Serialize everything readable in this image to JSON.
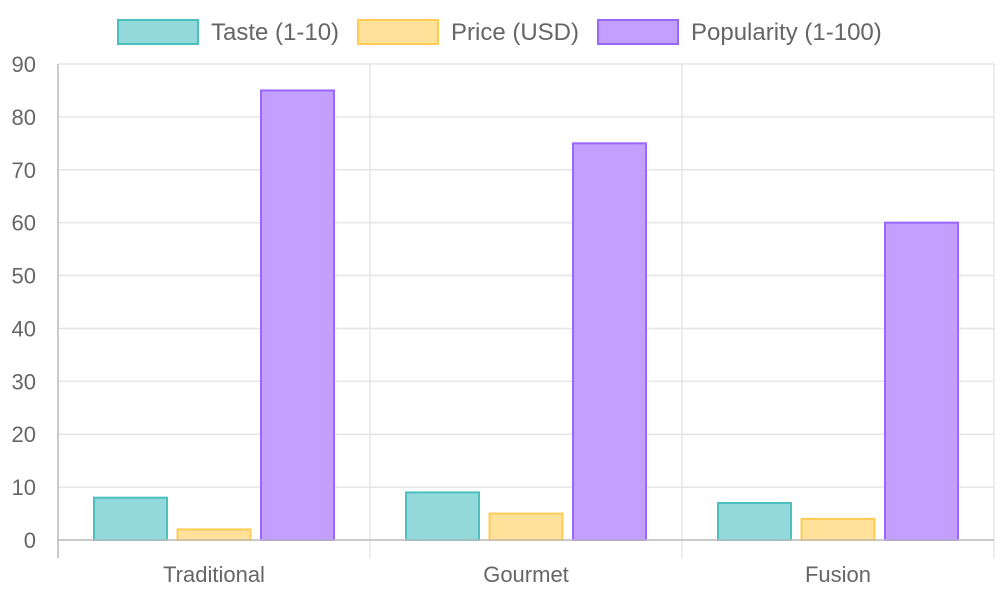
{
  "chart_data": {
    "type": "bar",
    "categories": [
      "Traditional",
      "Gourmet",
      "Fusion"
    ],
    "series": [
      {
        "name": "Taste (1-10)",
        "values": [
          8,
          9,
          7
        ],
        "fill": "#93d9d9",
        "stroke": "#4bc0c0"
      },
      {
        "name": "Price (USD)",
        "values": [
          2,
          5,
          4
        ],
        "fill": "#ffe19a",
        "stroke": "#ffcd56"
      },
      {
        "name": "Popularity (1-100)",
        "values": [
          85,
          75,
          60
        ],
        "fill": "#c39fff",
        "stroke": "#9966ff"
      }
    ],
    "ylim": [
      0,
      90
    ],
    "yticks": [
      "0",
      "10",
      "20",
      "30",
      "40",
      "50",
      "60",
      "70",
      "80",
      "90"
    ],
    "grid": true,
    "legend": "top"
  }
}
